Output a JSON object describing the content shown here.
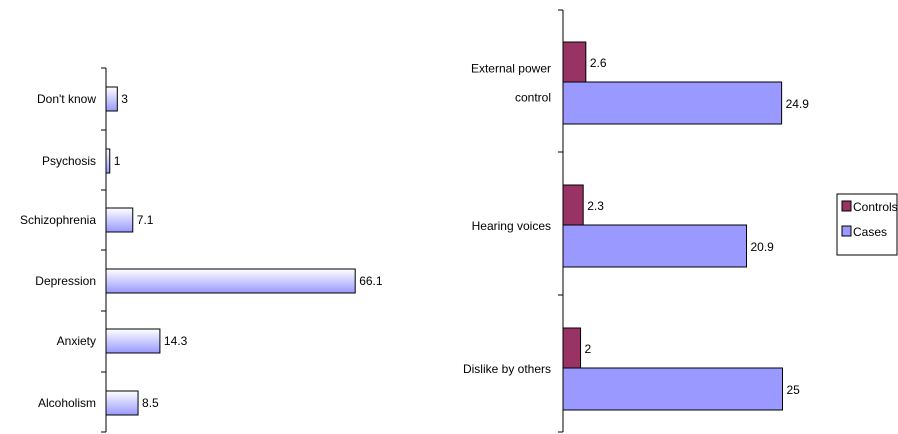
{
  "chart_data": [
    {
      "type": "bar",
      "orientation": "horizontal",
      "categories": [
        "Don't know",
        "Psychosis",
        "Schizophrenia",
        "Depression",
        "Anxiety",
        "Alcoholism"
      ],
      "values": [
        3,
        1,
        7.1,
        66.1,
        14.3,
        8.5
      ],
      "value_labels": [
        "3",
        "1",
        "7.1",
        "66.1",
        "14.3",
        "8.5"
      ],
      "xlim": [
        0,
        70
      ],
      "grid": false,
      "legend": false,
      "fill": "gradient",
      "colors": {
        "bar_light": "#ffffff",
        "bar_dark": "#9999ff",
        "border": "#000000"
      }
    },
    {
      "type": "bar",
      "orientation": "horizontal",
      "categories": [
        [
          "External power",
          "control"
        ],
        [
          "Hearing voices"
        ],
        [
          "Dislike by others"
        ]
      ],
      "series": [
        {
          "name": "Controls",
          "values": [
            2.6,
            2.3,
            2
          ],
          "value_labels": [
            "2.6",
            "2.3",
            "2"
          ],
          "color": "#993366"
        },
        {
          "name": "Cases",
          "values": [
            24.9,
            20.9,
            25
          ],
          "value_labels": [
            "24.9",
            "20.9",
            "25"
          ],
          "color": "#9999ff"
        }
      ],
      "xlim": [
        0,
        27
      ],
      "grid": false,
      "legend": "right"
    }
  ]
}
